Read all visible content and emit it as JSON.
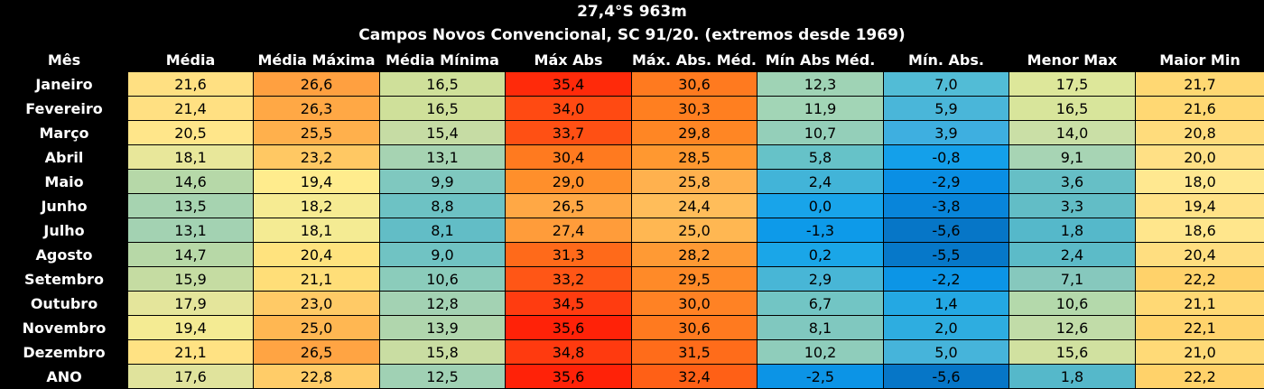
{
  "title": "27,4°S 963m",
  "subtitle": "Campos Novos Convencional, SC 91/20. (extremos desde 1969)",
  "chart_data": {
    "type": "table",
    "columns": [
      "Mês",
      "Média",
      "Média Máxima",
      "Média Mínima",
      "Máx Abs",
      "Máx. Abs. Méd.",
      "Mín Abs Méd.",
      "Mín. Abs.",
      "Menor Max",
      "Maior Min"
    ],
    "rows": [
      {
        "month": "Janeiro",
        "values": [
          "21,6",
          "26,6",
          "16,5",
          "35,4",
          "30,6",
          "12,3",
          "7,0",
          "17,5",
          "21,7"
        ],
        "colors": [
          "#ffe082",
          "#ffa040",
          "#cfe09a",
          "#ff2a0a",
          "#ff7a1f",
          "#9fd3b5",
          "#52bcd6",
          "#dde79a",
          "#ffd873"
        ]
      },
      {
        "month": "Fevereiro",
        "values": [
          "21,4",
          "26,3",
          "16,5",
          "34,0",
          "30,3",
          "11,9",
          "5,9",
          "16,5",
          "21,6"
        ],
        "colors": [
          "#ffe082",
          "#ffa845",
          "#cfe09a",
          "#ff4a12",
          "#ff7f20",
          "#a2d5b6",
          "#4ab6d9",
          "#d8e59b",
          "#ffd873"
        ]
      },
      {
        "month": "Março",
        "values": [
          "20,5",
          "25,5",
          "15,4",
          "33,7",
          "29,8",
          "10,7",
          "3,9",
          "14,0",
          "20,8"
        ],
        "colors": [
          "#ffe68a",
          "#ffb04c",
          "#c6dca4",
          "#ff5014",
          "#ff8624",
          "#94cfb9",
          "#3eafe0",
          "#cadfa6",
          "#ffdc7c"
        ]
      },
      {
        "month": "Abril",
        "values": [
          "18,1",
          "23,2",
          "13,1",
          "30,4",
          "28,5",
          "5,8",
          "-0,8",
          "9,1",
          "20,0"
        ],
        "colors": [
          "#e8e79a",
          "#ffc863",
          "#a6d3b2",
          "#ff7a1f",
          "#ff9830",
          "#66c2c8",
          "#14a0ea",
          "#a7d4b4",
          "#ffe085"
        ]
      },
      {
        "month": "Maio",
        "values": [
          "14,6",
          "19,4",
          "9,9",
          "29,0",
          "25,8",
          "2,4",
          "-2,9",
          "3,6",
          "18,0"
        ],
        "colors": [
          "#b6d8a8",
          "#ffec8d",
          "#7fc8bf",
          "#ff8f2b",
          "#ffb14e",
          "#42b4d8",
          "#0a8fe4",
          "#66bfc6",
          "#ffe890"
        ]
      },
      {
        "month": "Junho",
        "values": [
          "13,5",
          "18,2",
          "8,8",
          "26,5",
          "24,4",
          "0,0",
          "-3,8",
          "3,3",
          "19,4"
        ],
        "colors": [
          "#a6d3b0",
          "#f6eb92",
          "#6dc2c4",
          "#ffa845",
          "#ffbd5a",
          "#18a4ea",
          "#0885da",
          "#62bdc6",
          "#ffe287"
        ]
      },
      {
        "month": "Julho",
        "values": [
          "13,1",
          "18,1",
          "8,1",
          "27,4",
          "25,0",
          "-1,3",
          "-5,6",
          "1,8",
          "18,6"
        ],
        "colors": [
          "#a3d2b2",
          "#f4eb93",
          "#62bdc6",
          "#ff9c3a",
          "#ffb752",
          "#0d9ae9",
          "#0676c7",
          "#55b8ca",
          "#ffe68c"
        ]
      },
      {
        "month": "Agosto",
        "values": [
          "14,7",
          "20,4",
          "9,0",
          "31,3",
          "28,2",
          "0,2",
          "-5,5",
          "2,4",
          "20,4"
        ],
        "colors": [
          "#b7d8a7",
          "#ffe37e",
          "#70c3c3",
          "#ff6a1a",
          "#ff9a34",
          "#1aa6e8",
          "#0678c9",
          "#5cbbc8",
          "#ffde80"
        ]
      },
      {
        "month": "Setembro",
        "values": [
          "15,9",
          "21,1",
          "10,6",
          "33,2",
          "29,5",
          "2,9",
          "-2,2",
          "7,1",
          "22,2"
        ],
        "colors": [
          "#c5dca2",
          "#ffde78",
          "#8bccbb",
          "#ff5616",
          "#ff8a28",
          "#48b6d6",
          "#0c95e6",
          "#86c8bd",
          "#ffd26a"
        ]
      },
      {
        "month": "Outubro",
        "values": [
          "17,9",
          "23,0",
          "12,8",
          "34,5",
          "30,0",
          "6,7",
          "1,4",
          "10,6",
          "21,1"
        ],
        "colors": [
          "#e4e59b",
          "#ffca66",
          "#a3d2b3",
          "#ff3c10",
          "#ff8224",
          "#72c5c4",
          "#24a8e3",
          "#b4d9ab",
          "#ffd975"
        ]
      },
      {
        "month": "Novembro",
        "values": [
          "19,4",
          "25,0",
          "13,9",
          "35,6",
          "30,6",
          "8,1",
          "2,0",
          "12,6",
          "22,1"
        ],
        "colors": [
          "#f4eb93",
          "#ffb752",
          "#b0d6ad",
          "#ff2208",
          "#ff7a1f",
          "#80c8bf",
          "#2eade0",
          "#c1dca8",
          "#ffd36c"
        ]
      },
      {
        "month": "Dezembro",
        "values": [
          "21,1",
          "26,5",
          "15,8",
          "34,8",
          "31,5",
          "10,2",
          "5,0",
          "15,6",
          "21,0"
        ],
        "colors": [
          "#ffe283",
          "#ffa443",
          "#c9dda2",
          "#ff3a0f",
          "#ff6c1a",
          "#8fcdbb",
          "#46b4da",
          "#d1e1a0",
          "#ffda77"
        ]
      },
      {
        "month": "ANO",
        "values": [
          "17,6",
          "22,8",
          "12,5",
          "35,6",
          "32,4",
          "-2,5",
          "-5,6",
          "1,8",
          "22,2"
        ],
        "colors": [
          "#e0e39c",
          "#ffcc68",
          "#a0d1b4",
          "#ff2208",
          "#ff6016",
          "#0c94e6",
          "#0676c7",
          "#55b8ca",
          "#ffd26a"
        ]
      }
    ]
  }
}
